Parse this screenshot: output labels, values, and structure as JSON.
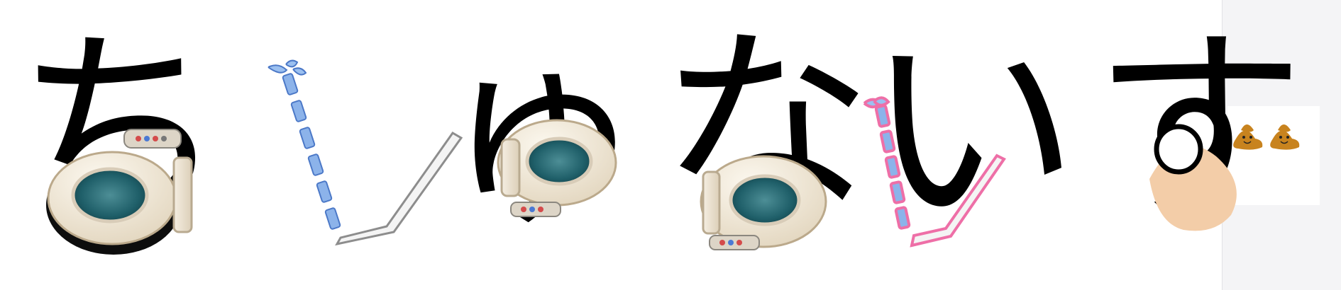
{
  "phrase": {
    "chars": [
      "ち",
      "ゅ",
      "な",
      "い",
      "す"
    ]
  },
  "icons": {
    "left_toilet": "toilet-icon",
    "left_water": "water-jet-icon",
    "middle_toilet": "toilet-icon",
    "right_toilet": "toilet-icon",
    "pink_water": "water-jet-icon",
    "finger": "finger-icon",
    "poo_1": "poo-emoji-icon",
    "poo_2": "poo-emoji-icon"
  },
  "colors": {
    "ink": "#000000",
    "water_blue": "#8cb3ea",
    "water_blue_dark": "#4b78c7",
    "pink": "#ee6fa7",
    "porcelain": "#efe7d7",
    "bowl": "#2d6a73",
    "skin": "#f3cda8",
    "poo": "#c8831e"
  }
}
